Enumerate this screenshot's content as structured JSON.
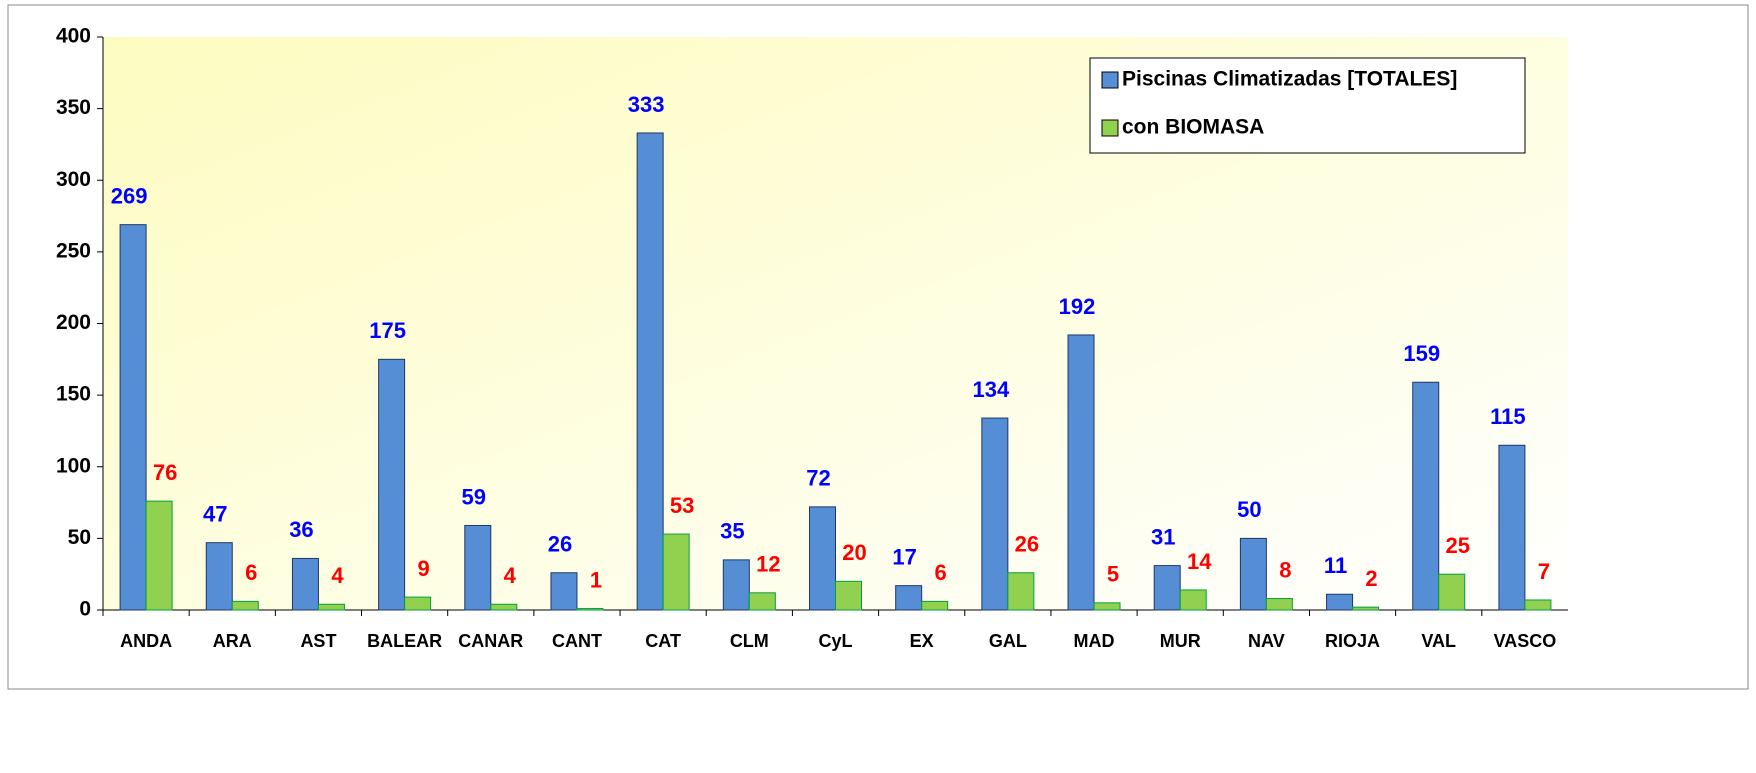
{
  "chart_data": {
    "type": "bar",
    "categories": [
      "ANDA",
      "ARA",
      "AST",
      "BALEAR",
      "CANAR",
      "CANT",
      "CAT",
      "CLM",
      "CyL",
      "EX",
      "GAL",
      "MAD",
      "MUR",
      "NAV",
      "RIOJA",
      "VAL",
      "VASCO"
    ],
    "series": [
      {
        "name": "Piscinas Climatizadas [TOTALES]",
        "color": "#558ed5",
        "label_color": "#0000ff",
        "values": [
          269,
          47,
          36,
          175,
          59,
          26,
          333,
          35,
          72,
          17,
          134,
          192,
          31,
          50,
          11,
          159,
          115
        ]
      },
      {
        "name": "con BIOMASA",
        "color": "#92d050",
        "label_color": "#ff0000",
        "values": [
          76,
          6,
          4,
          9,
          4,
          1,
          53,
          12,
          20,
          6,
          26,
          5,
          14,
          8,
          2,
          25,
          7
        ]
      }
    ],
    "ylim": [
      0,
      400
    ],
    "yticks": [
      0,
      50,
      100,
      150,
      200,
      250,
      300,
      350,
      400
    ],
    "legend": "upper right"
  }
}
